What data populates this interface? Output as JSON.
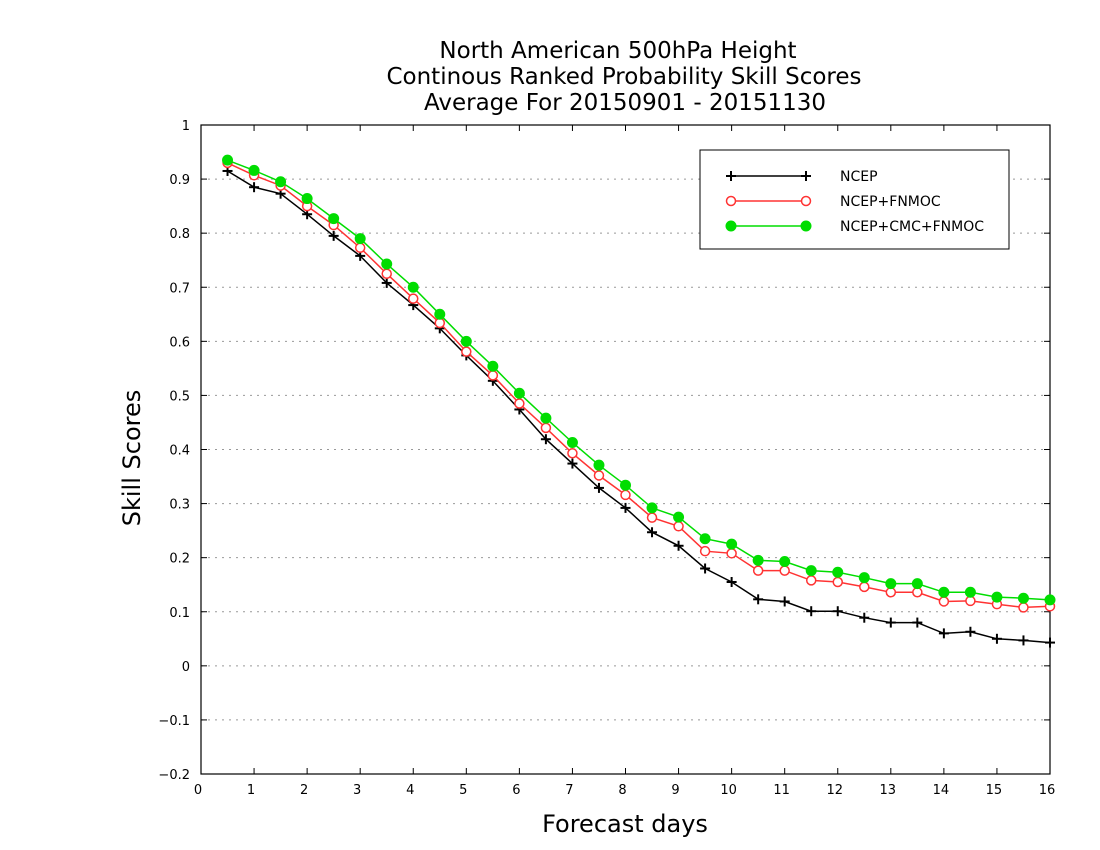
{
  "chart_data": {
    "type": "line",
    "title_lines": [
      "North American 500hPa Height",
      "Continous Ranked Probability Skill Scores",
      "Average For 20150901 - 20151130"
    ],
    "xlabel": "Forecast days",
    "ylabel": "Skill Scores",
    "xlim": [
      0,
      16
    ],
    "ylim": [
      -0.2,
      1
    ],
    "xticks": [
      "0",
      "1",
      "2",
      "3",
      "4",
      "5",
      "6",
      "7",
      "8",
      "9",
      "10",
      "11",
      "12",
      "13",
      "14",
      "15",
      "16"
    ],
    "yticks": [
      "−0.2",
      "−0.1",
      "0",
      "0.1",
      "0.2",
      "0.3",
      "0.4",
      "0.5",
      "0.6",
      "0.7",
      "0.8",
      "0.9",
      "1"
    ],
    "grid": "horizontal dotted",
    "legend_position": "top-right",
    "x": [
      0.5,
      1,
      1.5,
      2,
      2.5,
      3,
      3.5,
      4,
      4.5,
      5,
      5.5,
      6,
      6.5,
      7,
      7.5,
      8,
      8.5,
      9,
      9.5,
      10,
      10.5,
      11,
      11.5,
      12,
      12.5,
      13,
      13.5,
      14,
      14.5,
      15,
      15.5,
      16
    ],
    "series": [
      {
        "name": "NCEP",
        "color": "#000000",
        "marker": "plus",
        "values": [
          0.915,
          0.885,
          0.873,
          0.835,
          0.795,
          0.758,
          0.708,
          0.667,
          0.624,
          0.574,
          0.527,
          0.474,
          0.419,
          0.374,
          0.329,
          0.292,
          0.247,
          0.222,
          0.18,
          0.155,
          0.123,
          0.119,
          0.101,
          0.101,
          0.089,
          0.08,
          0.08,
          0.06,
          0.063,
          0.05,
          0.047,
          0.043
        ]
      },
      {
        "name": "NCEP+FNMOC",
        "color": "#ff3333",
        "marker": "open-circle",
        "values": [
          0.93,
          0.907,
          0.888,
          0.85,
          0.815,
          0.773,
          0.725,
          0.679,
          0.634,
          0.581,
          0.537,
          0.485,
          0.44,
          0.393,
          0.352,
          0.316,
          0.274,
          0.258,
          0.212,
          0.208,
          0.176,
          0.176,
          0.158,
          0.155,
          0.146,
          0.136,
          0.136,
          0.119,
          0.12,
          0.114,
          0.108,
          0.11
        ]
      },
      {
        "name": "NCEP+CMC+FNMOC",
        "color": "#00dd00",
        "marker": "filled-circle",
        "values": [
          0.935,
          0.916,
          0.895,
          0.864,
          0.827,
          0.79,
          0.743,
          0.7,
          0.65,
          0.6,
          0.554,
          0.504,
          0.458,
          0.413,
          0.371,
          0.334,
          0.292,
          0.275,
          0.235,
          0.225,
          0.195,
          0.193,
          0.176,
          0.173,
          0.163,
          0.152,
          0.152,
          0.136,
          0.136,
          0.127,
          0.125,
          0.122
        ]
      }
    ]
  }
}
